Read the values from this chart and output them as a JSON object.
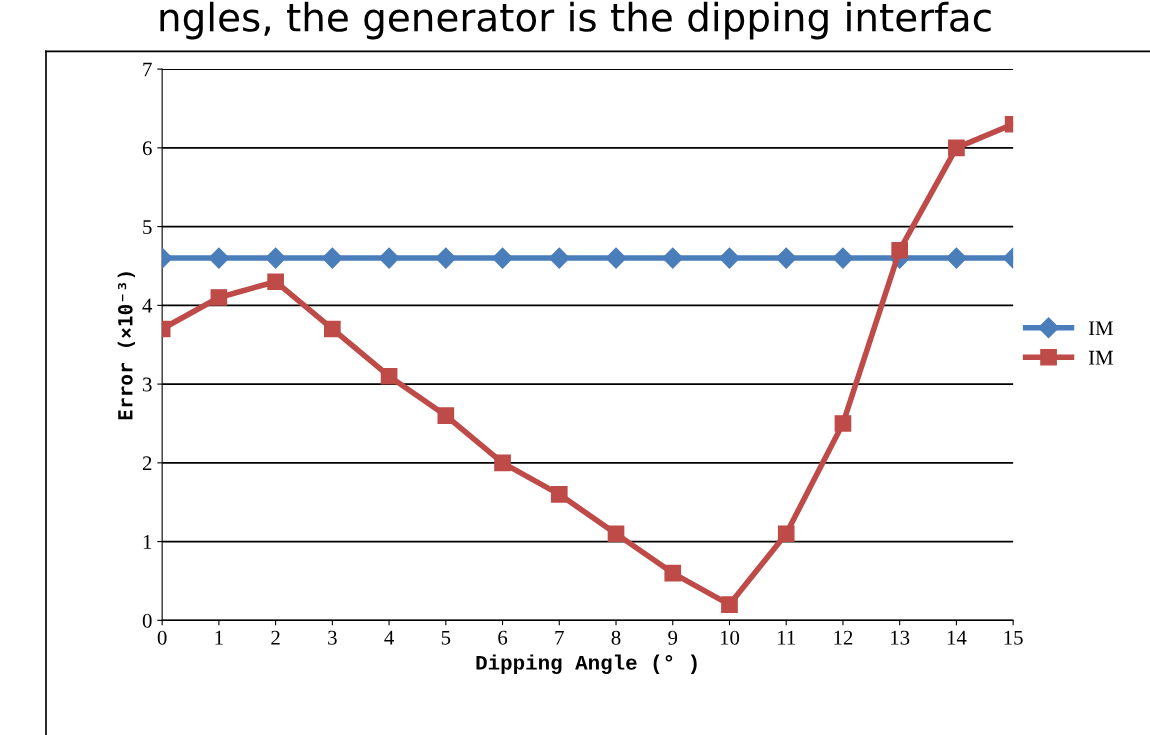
{
  "chart_data": {
    "type": "line",
    "title": "ngles, the generator is the dipping interfac",
    "xlabel": "Dipping Angle (° )",
    "ylabel": "Error (×10⁻³)",
    "categories": [
      "0",
      "1",
      "2",
      "3",
      "4",
      "5",
      "6",
      "7",
      "8",
      "9",
      "10",
      "11",
      "12",
      "13",
      "14",
      "15"
    ],
    "series": [
      {
        "name": "IM",
        "color": "#4a7ebb",
        "marker": "diamond",
        "values": [
          4.6,
          4.6,
          4.6,
          4.6,
          4.6,
          4.6,
          4.6,
          4.6,
          4.6,
          4.6,
          4.6,
          4.6,
          4.6,
          4.6,
          4.6,
          4.6
        ]
      },
      {
        "name": "IM",
        "color": "#be4b48",
        "marker": "square",
        "values": [
          3.7,
          4.1,
          4.3,
          3.7,
          3.1,
          2.6,
          2.0,
          1.6,
          1.1,
          0.6,
          0.2,
          1.1,
          2.5,
          4.7,
          6.0,
          6.3
        ]
      }
    ],
    "ylim": [
      0,
      7
    ],
    "yticks": [
      0,
      1,
      2,
      3,
      4,
      5,
      6,
      7
    ],
    "grid": "y",
    "legend": "right",
    "line_style": "solid"
  }
}
